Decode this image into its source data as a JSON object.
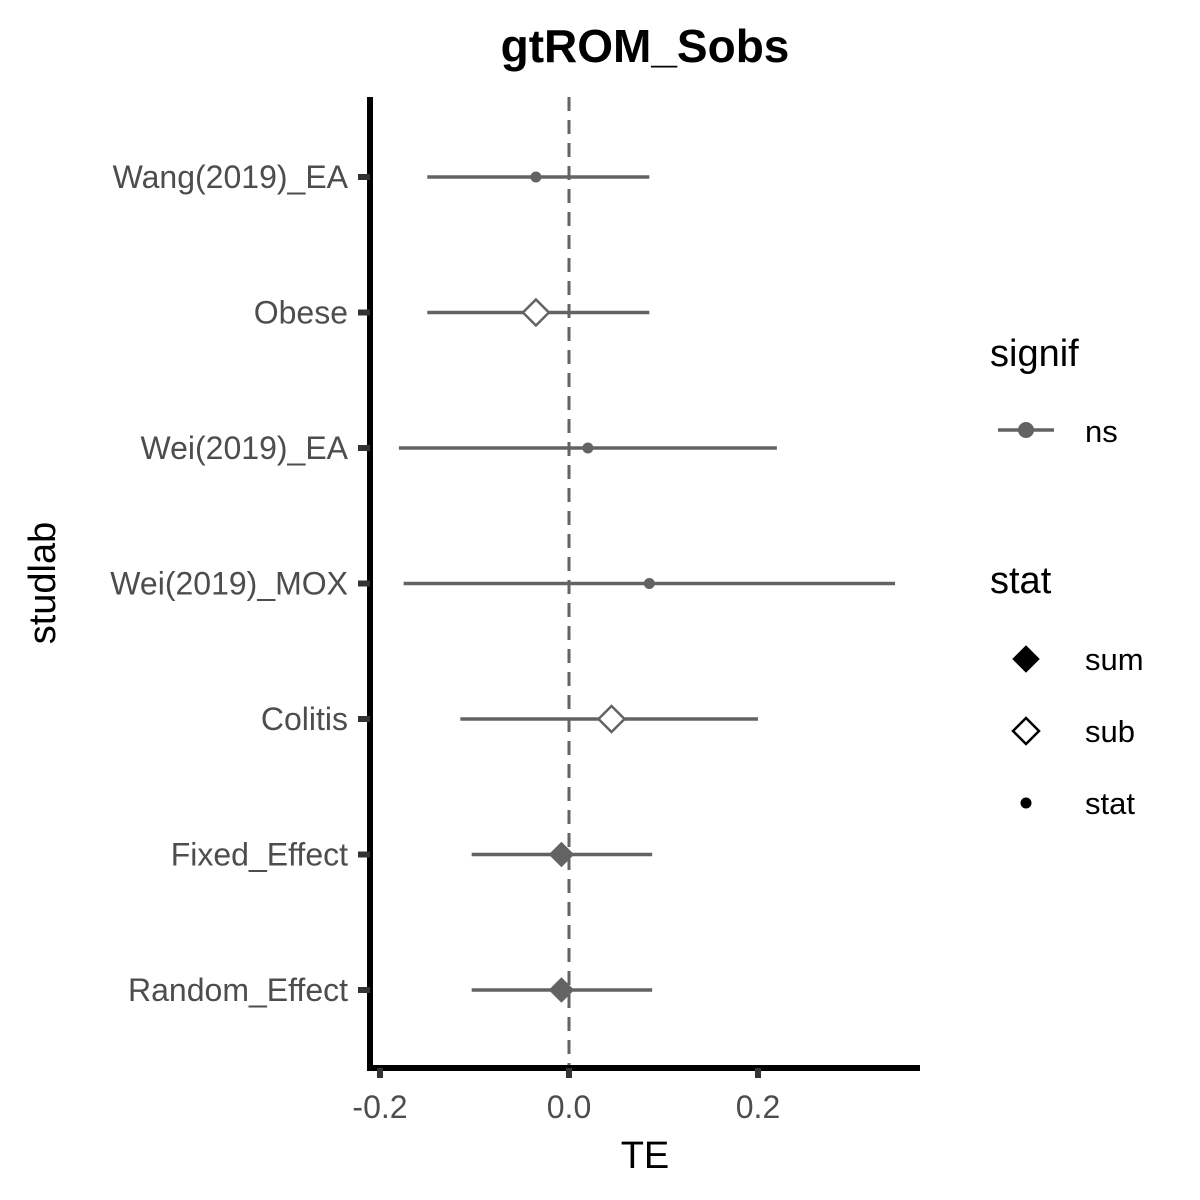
{
  "chart_data": {
    "type": "forest",
    "title": "gtROM_Sobs",
    "xlabel": "TE",
    "ylabel": "studlab",
    "xlim": [
      -0.21,
      0.37
    ],
    "xticks": [
      -0.2,
      0.0,
      0.2
    ],
    "xtick_labels": [
      "-0.2",
      "0.0",
      "0.2"
    ],
    "reference_line": 0.0,
    "rows": [
      {
        "label": "Wang(2019)_EA",
        "te": -0.035,
        "lower": -0.15,
        "upper": 0.085,
        "stat": "stat",
        "signif": "ns"
      },
      {
        "label": "Obese",
        "te": -0.035,
        "lower": -0.15,
        "upper": 0.085,
        "stat": "sub",
        "signif": "ns"
      },
      {
        "label": "Wei(2019)_EA",
        "te": 0.02,
        "lower": -0.18,
        "upper": 0.22,
        "stat": "stat",
        "signif": "ns"
      },
      {
        "label": "Wei(2019)_MOX",
        "te": 0.085,
        "lower": -0.175,
        "upper": 0.345,
        "stat": "stat",
        "signif": "ns"
      },
      {
        "label": "Colitis",
        "te": 0.045,
        "lower": -0.115,
        "upper": 0.2,
        "stat": "sub",
        "signif": "ns"
      },
      {
        "label": "Fixed_Effect",
        "te": -0.008,
        "lower": -0.103,
        "upper": 0.088,
        "stat": "sum",
        "signif": "ns"
      },
      {
        "label": "Random_Effect",
        "te": -0.008,
        "lower": -0.103,
        "upper": 0.088,
        "stat": "sum",
        "signif": "ns"
      }
    ],
    "legends": [
      {
        "title": "signif",
        "entries": [
          {
            "label": "ns",
            "shape": "line-point"
          }
        ]
      },
      {
        "title": "stat",
        "entries": [
          {
            "label": "sum",
            "shape": "filled-diamond"
          },
          {
            "label": "sub",
            "shape": "open-diamond"
          },
          {
            "label": "stat",
            "shape": "small-dot"
          }
        ]
      }
    ],
    "colors": {
      "series": "#636363",
      "axis": "#000000",
      "reference": "#636363",
      "tick_text": "#4d4d4d"
    }
  }
}
